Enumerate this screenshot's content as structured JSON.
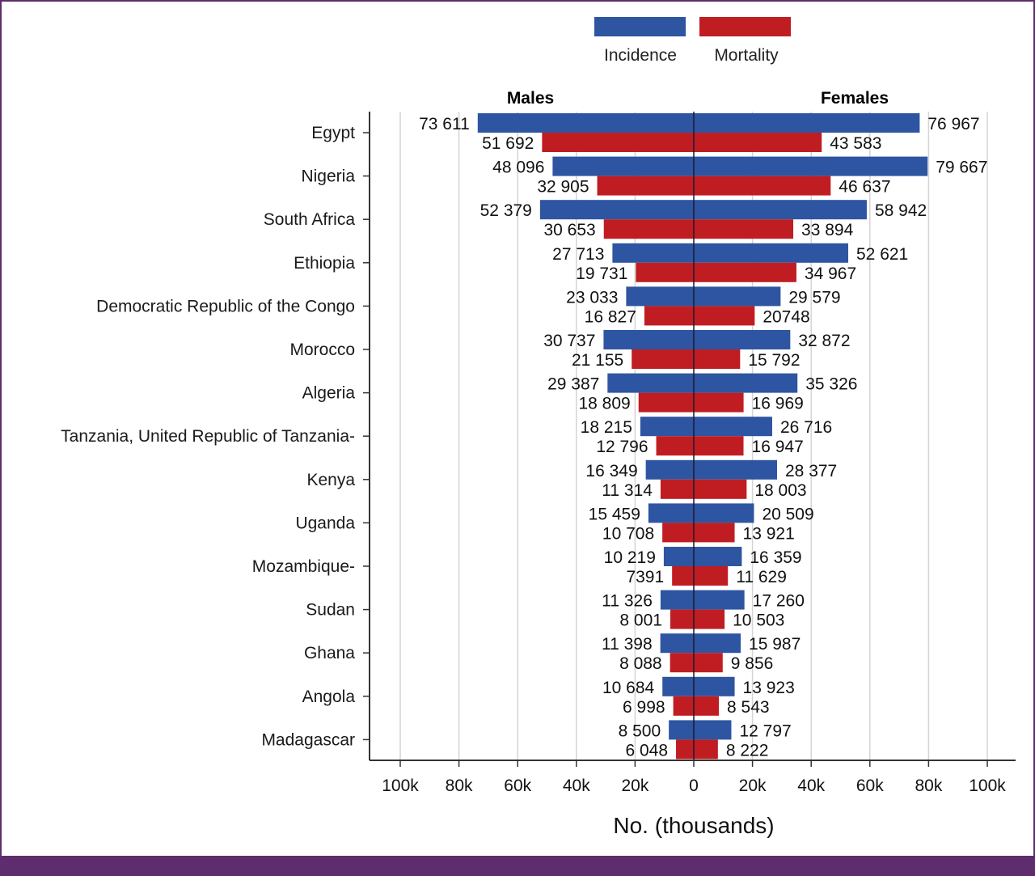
{
  "chart_data": {
    "type": "bar",
    "subtype": "population-pyramid (back-to-back horizontal bars)",
    "title": "",
    "xlabel": "No. (thousands)",
    "ylabel": "",
    "xlim": [
      -100000,
      100000
    ],
    "x_ticks": [
      "100k",
      "80k",
      "60k",
      "40k",
      "20k",
      "0",
      "20k",
      "40k",
      "60k",
      "80k",
      "100k"
    ],
    "x_tick_values": [
      -100000,
      -80000,
      -60000,
      -40000,
      -20000,
      0,
      20000,
      40000,
      60000,
      80000,
      100000
    ],
    "grid": "vertical",
    "panel_headers": {
      "left": "Males",
      "right": "Females"
    },
    "legend": {
      "placement": "top",
      "entries": [
        {
          "name": "Incidence",
          "color": "#2e55a2"
        },
        {
          "name": "Mortality",
          "color": "#c01d22"
        }
      ]
    },
    "categories": [
      "Egypt",
      "Nigeria",
      "South Africa",
      "Ethiopia",
      "Democratic Republic of the Congo",
      "Morocco",
      "Algeria",
      "Tanzania, United Republic of Tanzania-",
      "Kenya",
      "Uganda",
      "Mozambique-",
      "Sudan",
      "Ghana",
      "Angola",
      "Madagascar"
    ],
    "series": [
      {
        "name": "Males Incidence",
        "sex": "Males",
        "measure": "Incidence",
        "values": [
          73611,
          48096,
          52379,
          27713,
          23033,
          30737,
          29387,
          18215,
          16349,
          15459,
          10219,
          11326,
          11398,
          10684,
          8500
        ],
        "labels": [
          "73 611",
          "48 096",
          "52 379",
          "27 713",
          "23 033",
          "30 737",
          "29 387",
          "18 215",
          "16 349",
          "15 459",
          "10 219",
          "11 326",
          "11 398",
          "10 684",
          "8 500"
        ]
      },
      {
        "name": "Males Mortality",
        "sex": "Males",
        "measure": "Mortality",
        "values": [
          51692,
          32905,
          30653,
          19731,
          16827,
          21155,
          18809,
          12796,
          11314,
          10708,
          7391,
          8001,
          8088,
          6998,
          6048
        ],
        "labels": [
          "51 692",
          "32 905",
          "30 653",
          "19 731",
          "16 827",
          "21 155",
          "18 809",
          "12 796",
          "11 314",
          "10 708",
          "7391",
          "8 001",
          "8 088",
          "6 998",
          "6 048"
        ]
      },
      {
        "name": "Females Incidence",
        "sex": "Females",
        "measure": "Incidence",
        "values": [
          76967,
          79667,
          58942,
          52621,
          29579,
          32872,
          35326,
          26716,
          28377,
          20509,
          16359,
          17260,
          15987,
          13923,
          12797
        ],
        "labels": [
          "76 967",
          "79 667",
          "58 942",
          "52 621",
          "29 579",
          "32 872",
          "35 326",
          "26 716",
          "28 377",
          "20 509",
          "16 359",
          "17 260",
          "15 987",
          "13 923",
          "12 797"
        ]
      },
      {
        "name": "Females Mortality",
        "sex": "Females",
        "measure": "Mortality",
        "values": [
          43583,
          46637,
          33894,
          34967,
          20748,
          15792,
          16969,
          16947,
          18003,
          13921,
          11629,
          10503,
          9856,
          8543,
          8222
        ],
        "labels": [
          "43 583",
          "46 637",
          "33 894",
          "34 967",
          "20748",
          "15 792",
          "16 969",
          "16 947",
          "18 003",
          "13 921",
          "11 629",
          "10 503",
          "9 856",
          "8 543",
          "8 222"
        ]
      }
    ]
  },
  "colors": {
    "incidence": "#2e55a2",
    "mortality": "#c01d22",
    "frame": "#5e2d6e",
    "grid": "#d4d4d4",
    "axis": "#333333"
  }
}
